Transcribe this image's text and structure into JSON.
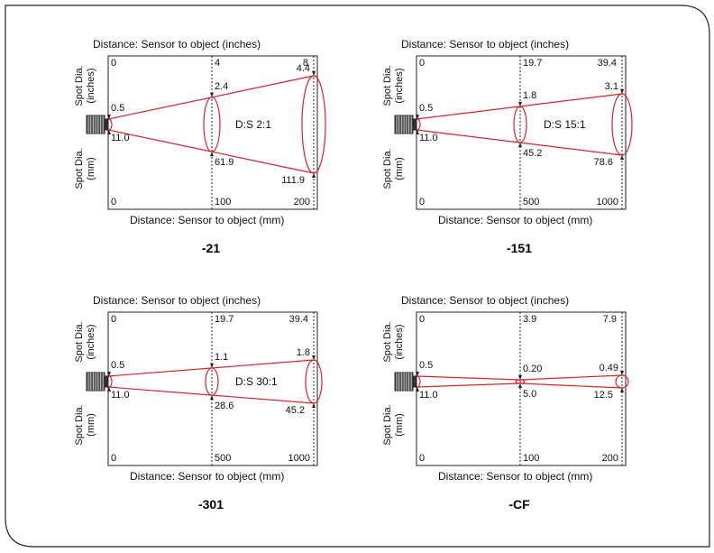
{
  "colors": {
    "beam": "#d8242c",
    "frame": "#222222",
    "sensor": "#222222"
  },
  "diagrams": [
    {
      "model": "-21",
      "top_axis_label": "Distance: Sensor to object (inches)",
      "bottom_axis_label": "Distance: Sensor to object (mm)",
      "left_top_label": "Spot Dia.\n(inches)",
      "left_bottom_label": "Spot Dia.\n(mm)",
      "ratio": "D:S 2:1",
      "inch_distances": [
        "0",
        "4",
        "8"
      ],
      "inch_spots": [
        "0.5",
        "2.4",
        "4.4"
      ],
      "mm_spots": [
        "11.0",
        "61.9",
        "111.9"
      ],
      "mm_distances": [
        "0",
        "100",
        "200"
      ]
    },
    {
      "model": "-151",
      "top_axis_label": "Distance: Sensor to object (inches)",
      "bottom_axis_label": "Distance: Sensor to object (mm)",
      "left_top_label": "Spot Dia.\n(inches)",
      "left_bottom_label": "Spot Dia.\n(mm)",
      "ratio": "D:S 15:1",
      "inch_distances": [
        "0",
        "19.7",
        "39.4"
      ],
      "inch_spots": [
        "0.5",
        "1.8",
        "3.1"
      ],
      "mm_spots": [
        "11.0",
        "45.2",
        "78.6"
      ],
      "mm_distances": [
        "0",
        "500",
        "1000"
      ]
    },
    {
      "model": "-301",
      "top_axis_label": "Distance: Sensor to object (inches)",
      "bottom_axis_label": "Distance: Sensor to object (mm)",
      "left_top_label": "Spot Dia.\n(inches)",
      "left_bottom_label": "Spot Dia.\n(mm)",
      "ratio": "D:S 30:1",
      "inch_distances": [
        "0",
        "19.7",
        "39.4"
      ],
      "inch_spots": [
        "0.5",
        "1.1",
        "1.8"
      ],
      "mm_spots": [
        "11.0",
        "28.6",
        "45.2"
      ],
      "mm_distances": [
        "0",
        "500",
        "1000"
      ]
    },
    {
      "model": "-CF",
      "top_axis_label": "Distance: Sensor to object (inches)",
      "bottom_axis_label": "Distance: Sensor to object (mm)",
      "left_top_label": "Spot Dia.\n(inches)",
      "left_bottom_label": "Spot Dia.\n(mm)",
      "ratio": "",
      "inch_distances": [
        "0",
        "3.9",
        "7.9"
      ],
      "inch_spots": [
        "0.5",
        "0.20",
        "0.49"
      ],
      "mm_spots": [
        "11.0",
        "5.0",
        "12.5"
      ],
      "mm_distances": [
        "0",
        "100",
        "200"
      ]
    }
  ]
}
